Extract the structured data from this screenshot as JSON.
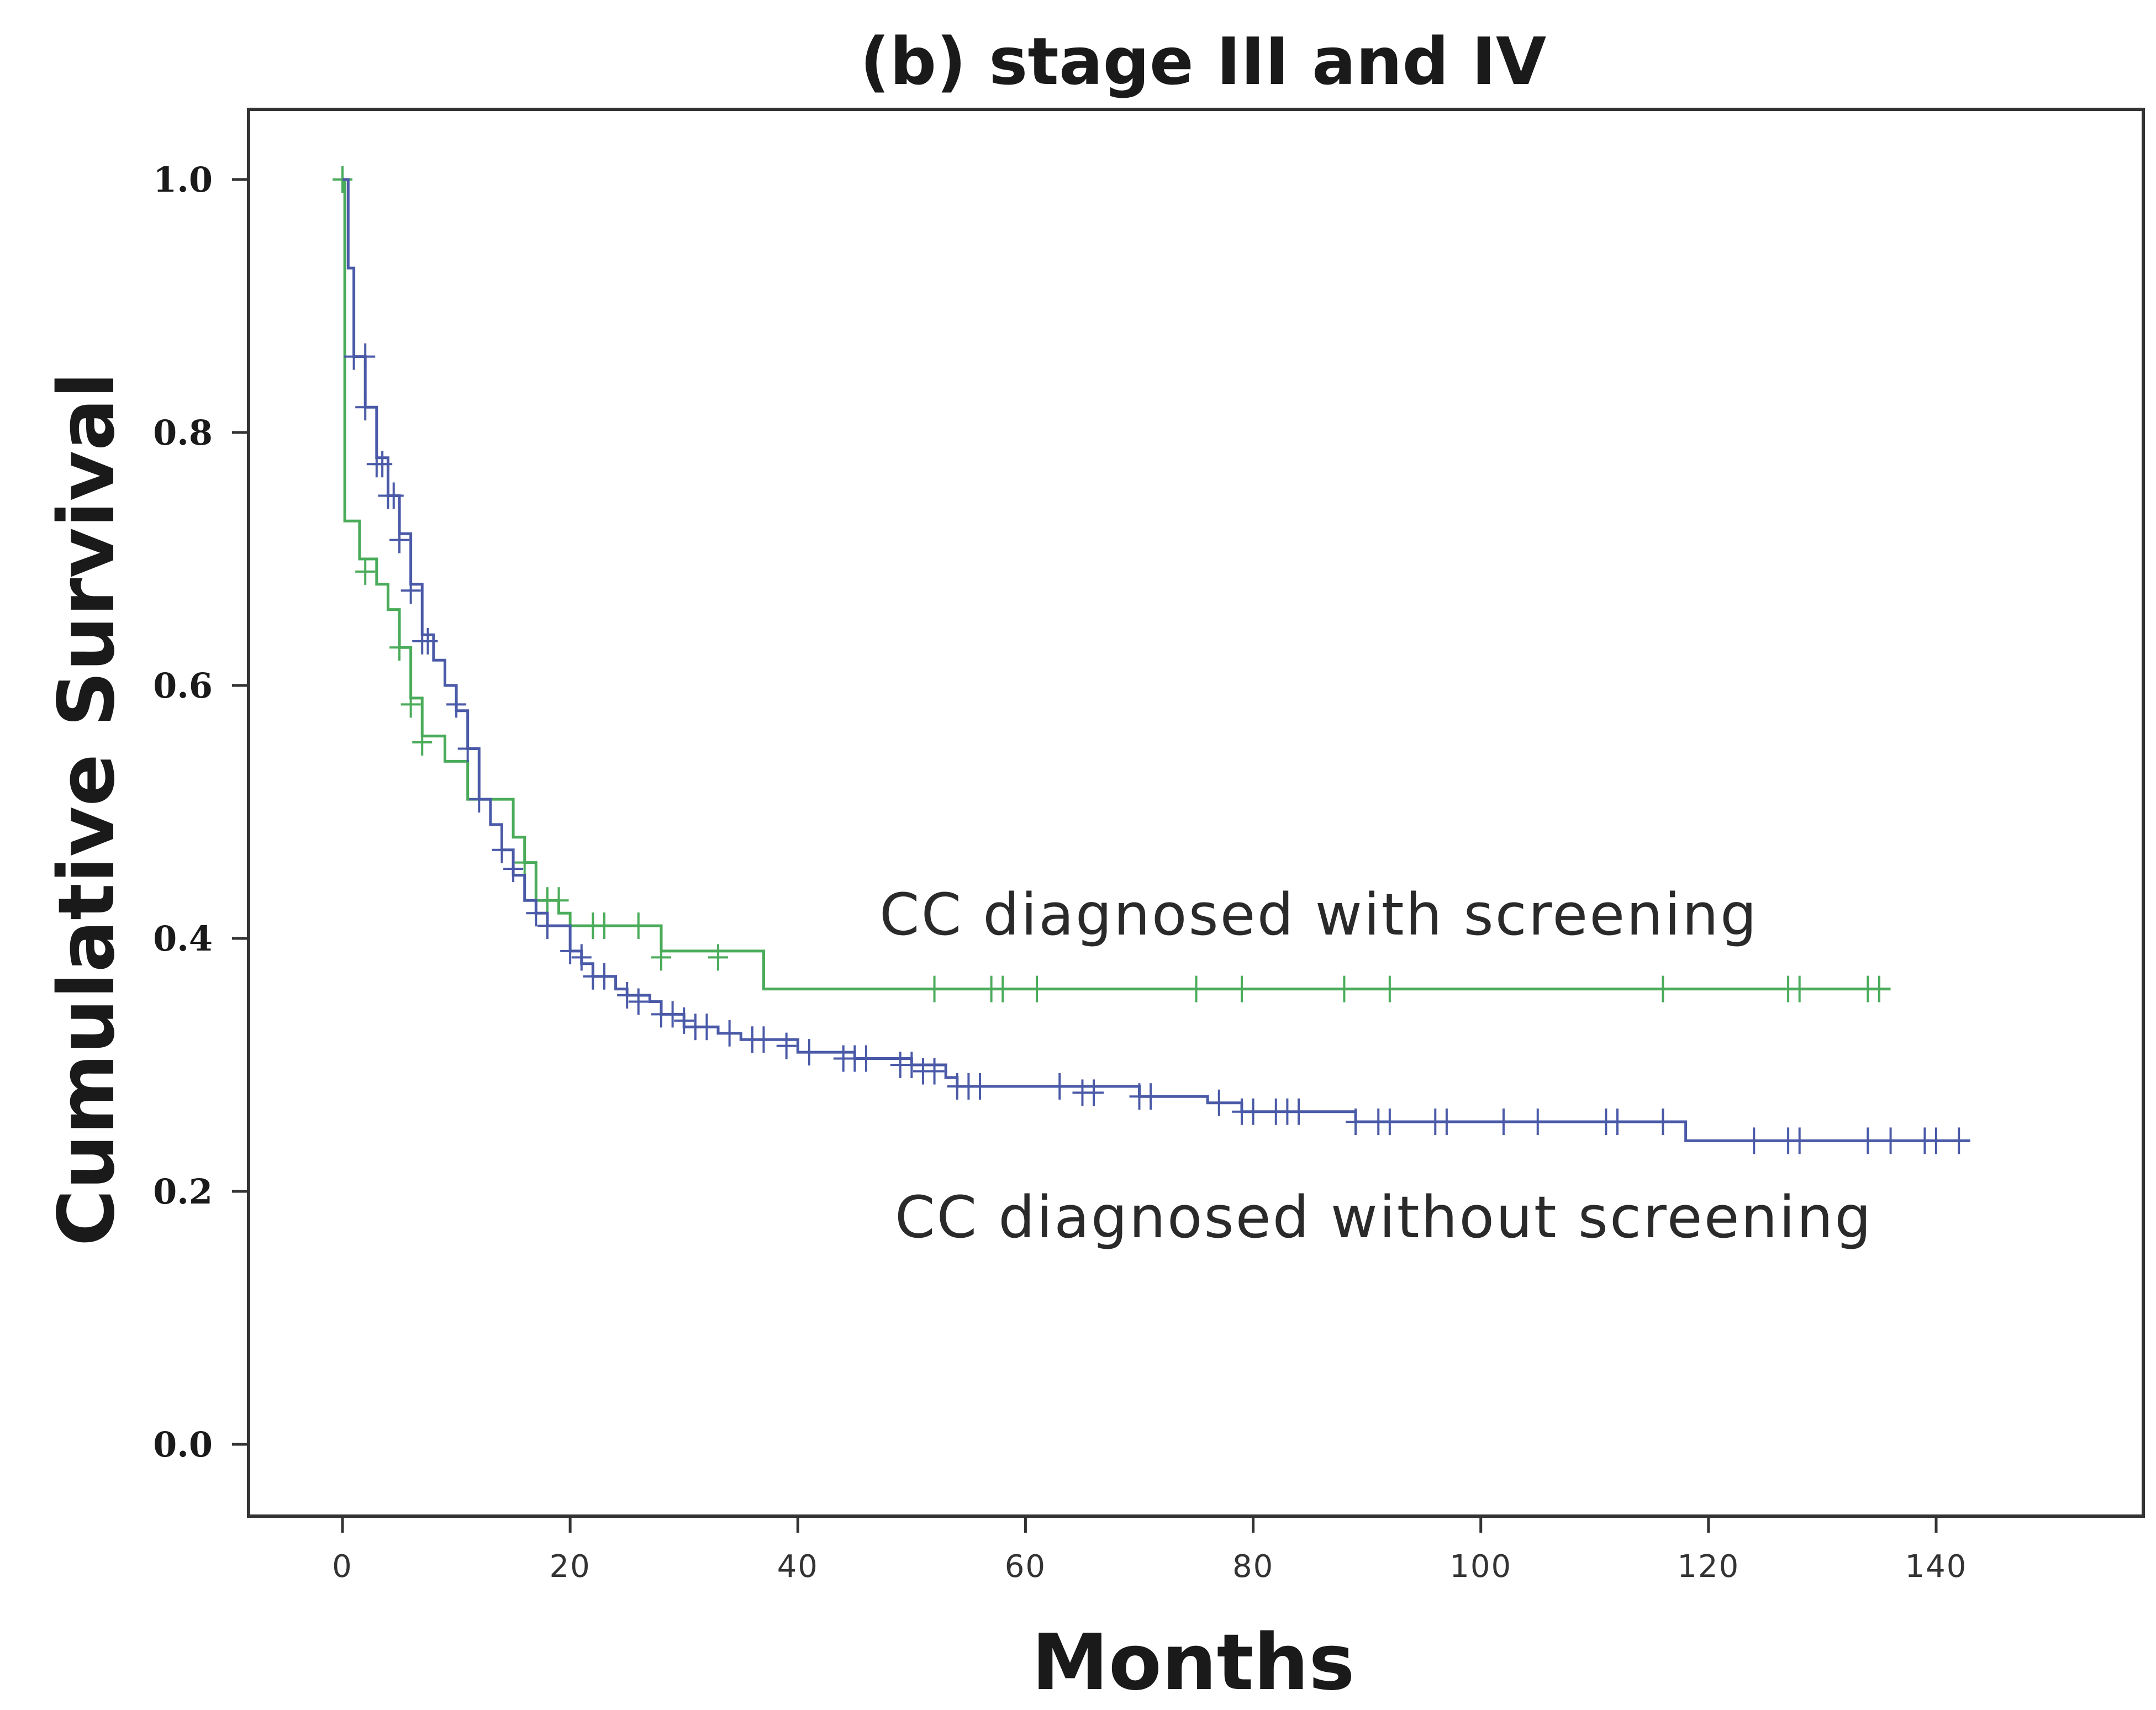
{
  "chart_data": {
    "type": "line",
    "subtype": "kaplan-meier",
    "title": "(b) stage III and IV",
    "xlabel": "Months",
    "ylabel": "Cumulative Survival",
    "xlim": [
      -8,
      160
    ],
    "ylim": [
      -0.05,
      1.05
    ],
    "xticks": [
      0,
      20,
      40,
      60,
      80,
      100,
      120,
      140
    ],
    "xtick_labels": [
      "0",
      "20",
      "40",
      "60",
      "80",
      "100",
      "120",
      "140"
    ],
    "yticks": [
      0.0,
      0.2,
      0.4,
      0.6,
      0.8,
      1.0
    ],
    "ytick_labels": [
      "0.0",
      "0.2",
      "0.4",
      "0.6",
      "0.8",
      "1.0"
    ],
    "grid": false,
    "series": [
      {
        "name": "CC diagnosed with screening",
        "color": "#4aac5a",
        "steps": [
          [
            0,
            1.0
          ],
          [
            0.2,
            0.73
          ],
          [
            1.5,
            0.7
          ],
          [
            3,
            0.68
          ],
          [
            4,
            0.66
          ],
          [
            5,
            0.63
          ],
          [
            6,
            0.59
          ],
          [
            7,
            0.56
          ],
          [
            9,
            0.54
          ],
          [
            11,
            0.51
          ],
          [
            15,
            0.48
          ],
          [
            16,
            0.46
          ],
          [
            17,
            0.43
          ],
          [
            19,
            0.42
          ],
          [
            20,
            0.41
          ],
          [
            28,
            0.39
          ],
          [
            37,
            0.36
          ],
          [
            136,
            0.36
          ]
        ],
        "censored": [
          [
            0,
            1.0
          ],
          [
            2,
            0.69
          ],
          [
            5,
            0.63
          ],
          [
            6,
            0.585
          ],
          [
            7,
            0.555
          ],
          [
            16,
            0.46
          ],
          [
            18,
            0.43
          ],
          [
            19,
            0.43
          ],
          [
            22,
            0.41
          ],
          [
            23,
            0.41
          ],
          [
            26,
            0.41
          ],
          [
            28,
            0.385
          ],
          [
            33,
            0.385
          ],
          [
            52,
            0.36
          ],
          [
            57,
            0.36
          ],
          [
            58,
            0.36
          ],
          [
            61,
            0.36
          ],
          [
            75,
            0.36
          ],
          [
            79,
            0.36
          ],
          [
            88,
            0.36
          ],
          [
            92,
            0.36
          ],
          [
            116,
            0.36
          ],
          [
            127,
            0.36
          ],
          [
            128,
            0.36
          ],
          [
            134,
            0.36
          ],
          [
            135,
            0.36
          ]
        ],
        "label_text": "CC diagnosed with screening"
      },
      {
        "name": "CC diagnosed without screening",
        "color": "#4a5aa8",
        "steps": [
          [
            0,
            1.0
          ],
          [
            0.5,
            0.93
          ],
          [
            1,
            0.86
          ],
          [
            2,
            0.82
          ],
          [
            3,
            0.78
          ],
          [
            4,
            0.75
          ],
          [
            5,
            0.72
          ],
          [
            6,
            0.68
          ],
          [
            7,
            0.64
          ],
          [
            8,
            0.62
          ],
          [
            9,
            0.6
          ],
          [
            10,
            0.58
          ],
          [
            11,
            0.55
          ],
          [
            12,
            0.51
          ],
          [
            13,
            0.49
          ],
          [
            14,
            0.47
          ],
          [
            15,
            0.45
          ],
          [
            16,
            0.43
          ],
          [
            17,
            0.42
          ],
          [
            18,
            0.41
          ],
          [
            20,
            0.39
          ],
          [
            21,
            0.38
          ],
          [
            22,
            0.37
          ],
          [
            24,
            0.36
          ],
          [
            25,
            0.355
          ],
          [
            27,
            0.35
          ],
          [
            28,
            0.34
          ],
          [
            30,
            0.33
          ],
          [
            33,
            0.325
          ],
          [
            35,
            0.32
          ],
          [
            40,
            0.31
          ],
          [
            45,
            0.305
          ],
          [
            50,
            0.3
          ],
          [
            53,
            0.29
          ],
          [
            54,
            0.283
          ],
          [
            70,
            0.275
          ],
          [
            76,
            0.27
          ],
          [
            79,
            0.263
          ],
          [
            89,
            0.255
          ],
          [
            118,
            0.24
          ],
          [
            143,
            0.24
          ]
        ],
        "censored": [
          [
            1,
            0.86
          ],
          [
            2,
            0.86
          ],
          [
            2,
            0.82
          ],
          [
            3,
            0.775
          ],
          [
            3.5,
            0.775
          ],
          [
            4,
            0.75
          ],
          [
            4.5,
            0.75
          ],
          [
            5,
            0.715
          ],
          [
            6,
            0.675
          ],
          [
            7,
            0.635
          ],
          [
            7.5,
            0.635
          ],
          [
            10,
            0.585
          ],
          [
            11,
            0.55
          ],
          [
            12,
            0.51
          ],
          [
            14,
            0.47
          ],
          [
            15,
            0.455
          ],
          [
            17,
            0.42
          ],
          [
            18,
            0.41
          ],
          [
            20,
            0.39
          ],
          [
            21,
            0.385
          ],
          [
            22,
            0.37
          ],
          [
            23,
            0.37
          ],
          [
            25,
            0.355
          ],
          [
            26,
            0.35
          ],
          [
            28,
            0.34
          ],
          [
            29,
            0.34
          ],
          [
            30,
            0.335
          ],
          [
            31,
            0.33
          ],
          [
            32,
            0.33
          ],
          [
            34,
            0.325
          ],
          [
            36,
            0.32
          ],
          [
            37,
            0.32
          ],
          [
            39,
            0.315
          ],
          [
            41,
            0.31
          ],
          [
            44,
            0.305
          ],
          [
            45,
            0.305
          ],
          [
            46,
            0.305
          ],
          [
            49,
            0.3
          ],
          [
            50,
            0.3
          ],
          [
            51,
            0.295
          ],
          [
            52,
            0.295
          ],
          [
            54,
            0.283
          ],
          [
            55,
            0.283
          ],
          [
            56,
            0.283
          ],
          [
            63,
            0.283
          ],
          [
            65,
            0.278
          ],
          [
            66,
            0.278
          ],
          [
            70,
            0.275
          ],
          [
            71,
            0.275
          ],
          [
            77,
            0.27
          ],
          [
            79,
            0.263
          ],
          [
            80,
            0.263
          ],
          [
            82,
            0.263
          ],
          [
            83,
            0.263
          ],
          [
            84,
            0.263
          ],
          [
            89,
            0.255
          ],
          [
            91,
            0.255
          ],
          [
            92,
            0.255
          ],
          [
            96,
            0.255
          ],
          [
            97,
            0.255
          ],
          [
            102,
            0.255
          ],
          [
            105,
            0.255
          ],
          [
            111,
            0.255
          ],
          [
            112,
            0.255
          ],
          [
            116,
            0.255
          ],
          [
            124,
            0.24
          ],
          [
            127,
            0.24
          ],
          [
            128,
            0.24
          ],
          [
            134,
            0.24
          ],
          [
            136,
            0.24
          ],
          [
            139,
            0.24
          ],
          [
            140,
            0.24
          ],
          [
            142,
            0.24
          ]
        ],
        "label_text": "CC diagnosed without screening"
      }
    ]
  }
}
